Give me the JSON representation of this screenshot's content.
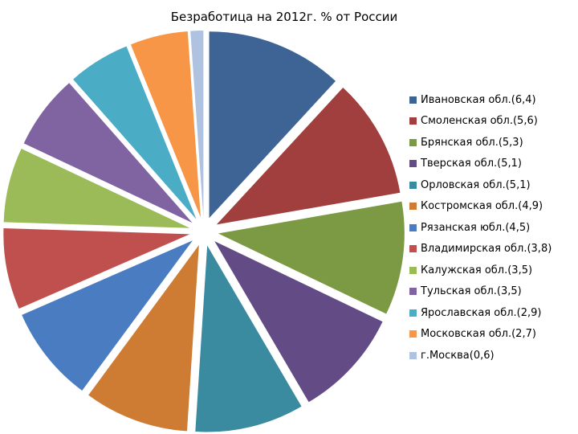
{
  "chart_data": {
    "type": "pie",
    "title": "Безработица на 2012г. % от России",
    "legend_position": "right",
    "exploded": true,
    "slices": [
      {
        "label": "Ивановская обл.(6,4)",
        "value": 6.4,
        "color": "#3E6496"
      },
      {
        "label": "Смоленская обл.(5,6)",
        "value": 5.6,
        "color": "#A03F3D"
      },
      {
        "label": "Брянская обл.(5,3)",
        "value": 5.3,
        "color": "#7C9A44"
      },
      {
        "label": "Тверская обл.(5,1)",
        "value": 5.1,
        "color": "#634B86"
      },
      {
        "label": "Орловская обл.(5,1)",
        "value": 5.1,
        "color": "#3A8AA0"
      },
      {
        "label": "Костромская обл.(4,9)",
        "value": 4.9,
        "color": "#CE7B33"
      },
      {
        "label": "Рязанская юбл.(4,5)",
        "value": 4.5,
        "color": "#4A7CC2"
      },
      {
        "label": "Владимирская обл.(3,8)",
        "value": 3.8,
        "color": "#C0504D"
      },
      {
        "label": "Калужская обл.(3,5)",
        "value": 3.5,
        "color": "#9BBB59"
      },
      {
        "label": "Тульская обл.(3,5)",
        "value": 3.5,
        "color": "#8064A2"
      },
      {
        "label": "Ярославская обл.(2,9)",
        "value": 2.9,
        "color": "#4BACC6"
      },
      {
        "label": "Московская обл.(2,7)",
        "value": 2.7,
        "color": "#F79646"
      },
      {
        "label": "г.Москва(0,6)",
        "value": 0.6,
        "color": "#AFC3E0"
      }
    ]
  }
}
